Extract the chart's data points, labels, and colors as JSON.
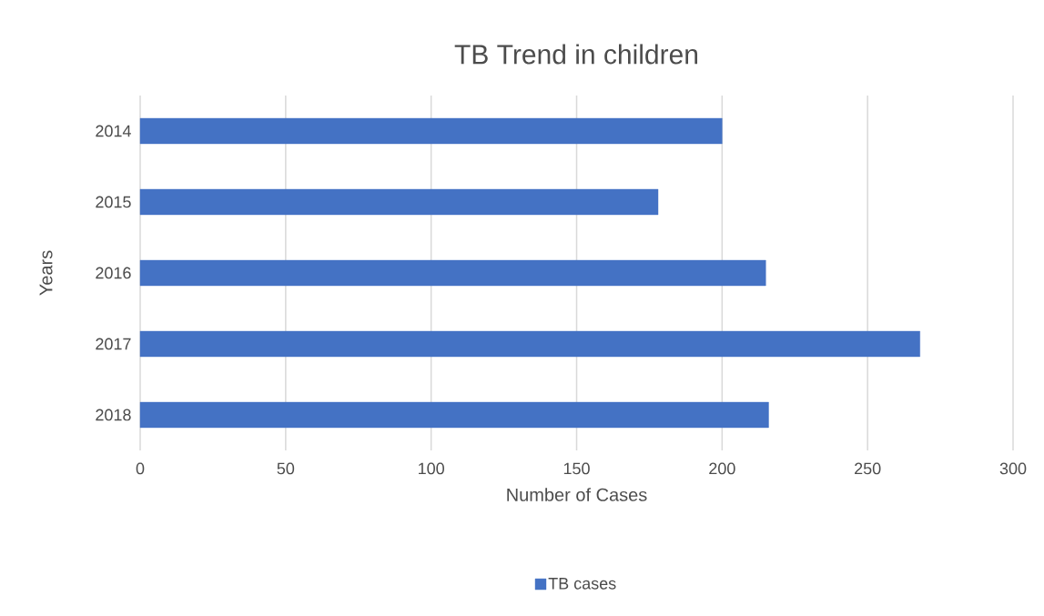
{
  "chart_data": {
    "type": "bar",
    "orientation": "horizontal",
    "title": "TB Trend in children",
    "xlabel": "Number of Cases",
    "ylabel": "Years",
    "categories": [
      "2014",
      "2015",
      "2016",
      "2017",
      "2018"
    ],
    "series": [
      {
        "name": "TB cases",
        "color": "#4472c4",
        "values": [
          200,
          178,
          215,
          268,
          216
        ]
      }
    ],
    "xlim": [
      0,
      300
    ],
    "xticks": [
      0,
      50,
      100,
      150,
      200,
      250,
      300
    ],
    "grid": "x",
    "legend": "bottom"
  }
}
